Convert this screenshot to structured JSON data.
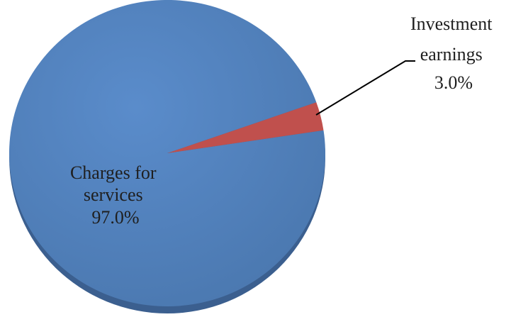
{
  "chart_data": {
    "type": "pie",
    "title": "",
    "slices": [
      {
        "label_lines": [
          "Charges for",
          "services"
        ],
        "value_text": "97.0%",
        "value": 97.0,
        "color": "#4f81bd"
      },
      {
        "label_lines": [
          "Investment",
          "earnings"
        ],
        "value_text": "3.0%",
        "value": 3.0,
        "color": "#c0504d"
      }
    ],
    "legend": "none",
    "data_labels": true,
    "leader_lines": true
  }
}
